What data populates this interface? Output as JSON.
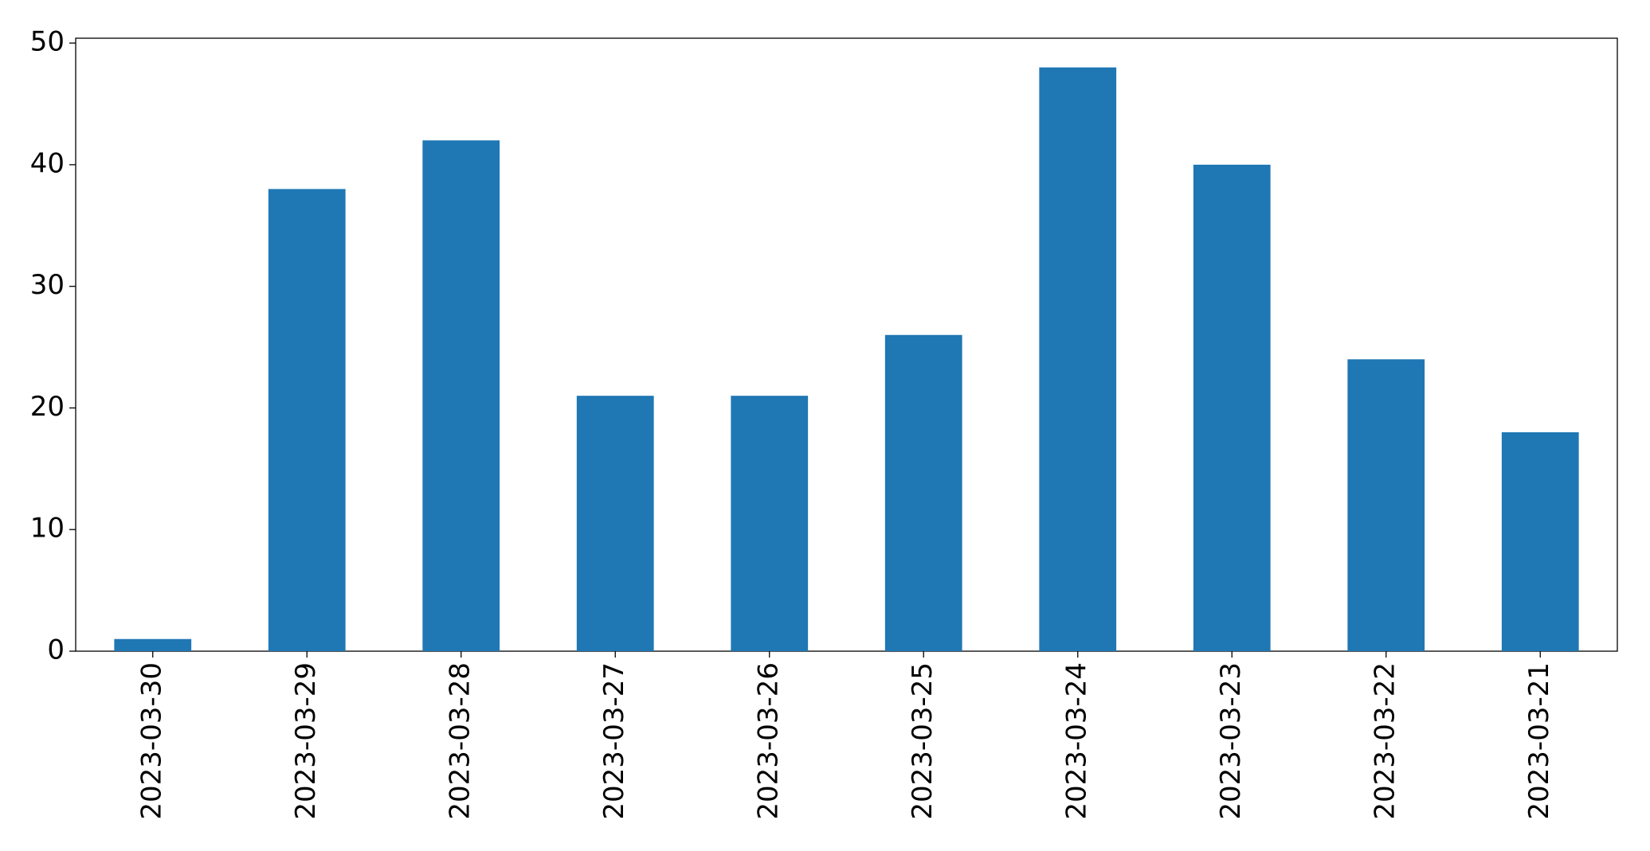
{
  "chart_data": {
    "type": "bar",
    "categories": [
      "2023-03-30",
      "2023-03-29",
      "2023-03-28",
      "2023-03-27",
      "2023-03-26",
      "2023-03-25",
      "2023-03-24",
      "2023-03-23",
      "2023-03-22",
      "2023-03-21"
    ],
    "values": [
      1,
      38,
      42,
      21,
      21,
      26,
      48,
      40,
      24,
      18
    ],
    "color": "#1f77b4",
    "ylim": [
      0,
      50.4
    ],
    "yticks": [
      0,
      10,
      20,
      30,
      40,
      50
    ],
    "grid": false
  }
}
